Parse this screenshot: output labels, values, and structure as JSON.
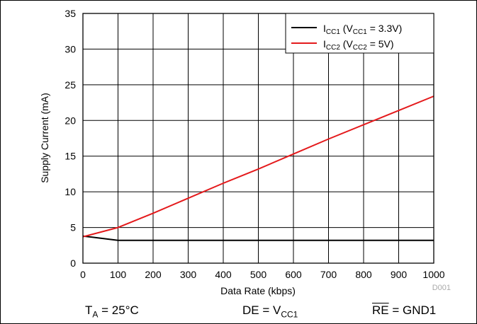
{
  "chart_data": {
    "type": "line",
    "xlabel": "Data Rate (kbps)",
    "ylabel": "Supply Current (mA)",
    "xlim": [
      0,
      1000
    ],
    "ylim": [
      0,
      35
    ],
    "x_ticks": [
      "0",
      "100",
      "200",
      "300",
      "400",
      "500",
      "600",
      "700",
      "800",
      "900",
      "1000"
    ],
    "y_ticks": [
      "0",
      "5",
      "10",
      "15",
      "20",
      "25",
      "30",
      "35"
    ],
    "grid": true,
    "legend_position": "top-right",
    "series": [
      {
        "name_main": "I",
        "name_sub": "CC1",
        "name_rest": " (V",
        "name_sub2": "CC1",
        "name_end": " = 3.3V)",
        "color": "#000000",
        "points": [
          [
            0,
            3.8
          ],
          [
            100,
            3.2
          ],
          [
            200,
            3.2
          ],
          [
            300,
            3.2
          ],
          [
            400,
            3.2
          ],
          [
            500,
            3.2
          ],
          [
            600,
            3.2
          ],
          [
            700,
            3.2
          ],
          [
            800,
            3.2
          ],
          [
            900,
            3.2
          ],
          [
            1000,
            3.2
          ]
        ]
      },
      {
        "name_main": "I",
        "name_sub": "CC2",
        "name_rest": " (V",
        "name_sub2": "CC2",
        "name_end": " = 5V)",
        "color": "#e41a1c",
        "points": [
          [
            0,
            3.7
          ],
          [
            100,
            5.0
          ],
          [
            200,
            7.0
          ],
          [
            300,
            9.1
          ],
          [
            400,
            11.2
          ],
          [
            500,
            13.2
          ],
          [
            600,
            15.3
          ],
          [
            700,
            17.4
          ],
          [
            800,
            19.4
          ],
          [
            900,
            21.4
          ],
          [
            1000,
            23.4
          ]
        ]
      }
    ],
    "figure_id": "D001"
  },
  "conditions": {
    "ta_main": "T",
    "ta_sub": "A",
    "ta_rest": " = 25°C",
    "de_main": "DE = V",
    "de_sub": "CC1",
    "re_bar": "RE",
    "re_rest": " = GND1"
  }
}
